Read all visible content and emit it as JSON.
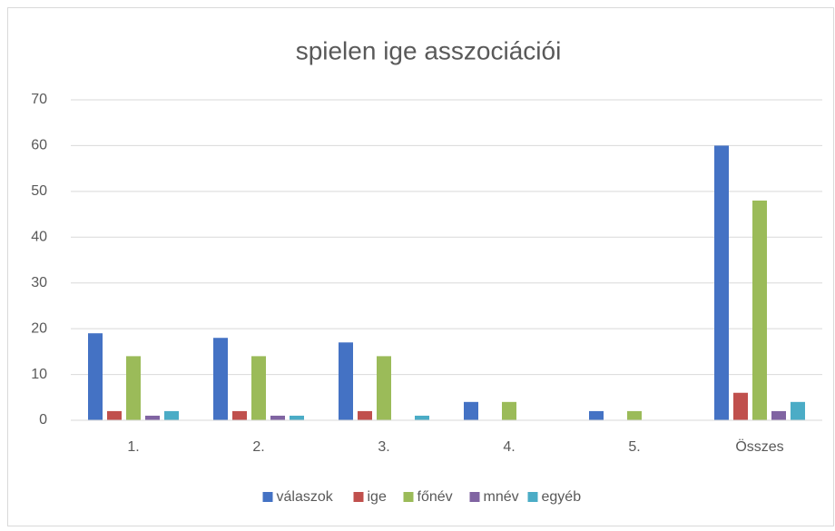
{
  "chart_data": {
    "type": "bar",
    "title": "spielen ige asszociációi",
    "categories": [
      "1.",
      "2.",
      "3.",
      "4.",
      "5.",
      "Összes"
    ],
    "series": [
      {
        "name": "válaszok",
        "color": "#4472c4",
        "values": [
          19,
          18,
          17,
          4,
          2,
          60
        ]
      },
      {
        "name": "ige",
        "color": "#c0504d",
        "values": [
          2,
          2,
          2,
          0,
          0,
          6
        ]
      },
      {
        "name": "főnév",
        "color": "#9bbb59",
        "values": [
          14,
          14,
          14,
          4,
          2,
          48
        ]
      },
      {
        "name": "mnév",
        "color": "#8064a2",
        "values": [
          1,
          1,
          0,
          0,
          0,
          2
        ]
      },
      {
        "name": "egyéb",
        "color": "#4bacc6",
        "values": [
          2,
          1,
          1,
          0,
          0,
          4
        ]
      }
    ],
    "ylim": [
      0,
      70
    ],
    "yticks": [
      0,
      10,
      20,
      30,
      40,
      50,
      60,
      70
    ],
    "grid": true,
    "legend": "bottom"
  }
}
